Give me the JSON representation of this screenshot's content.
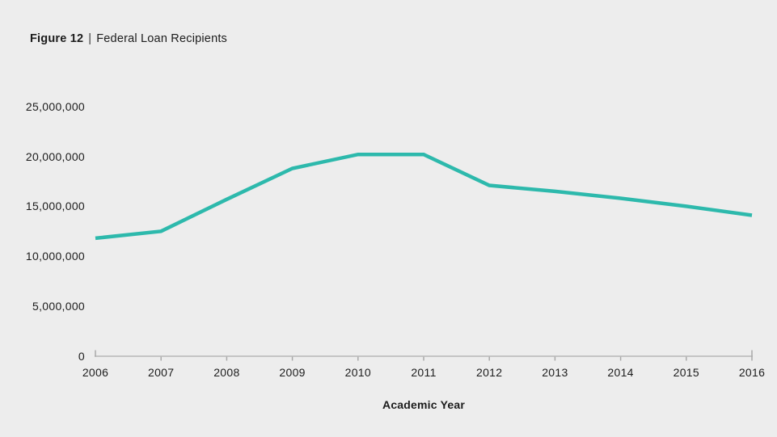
{
  "title": {
    "figure": "Figure 12",
    "separator": "|",
    "text": "Federal Loan Recipients"
  },
  "colors": {
    "background": "#ededed",
    "line": "#2db9ac",
    "axis_line": "#c4c4c4",
    "tick": "#a9a9a9",
    "text": "#1c1c1c"
  },
  "chart_data": {
    "type": "line",
    "title": "Figure 12 | Federal Loan Recipients",
    "categories": [
      "2006",
      "2007",
      "2008",
      "2009",
      "2010",
      "2011",
      "2012",
      "2013",
      "2014",
      "2015",
      "2016"
    ],
    "values": [
      11800000,
      12500000,
      15700000,
      18800000,
      20200000,
      20200000,
      17100000,
      16500000,
      15800000,
      15000000,
      14100000
    ],
    "xlabel": "Academic Year",
    "ylabel": "",
    "ylim": [
      0,
      25000000
    ],
    "yticks": [
      0,
      5000000,
      10000000,
      15000000,
      20000000,
      25000000
    ],
    "grid": false,
    "legend": false,
    "line_color": "#2db9ac"
  }
}
